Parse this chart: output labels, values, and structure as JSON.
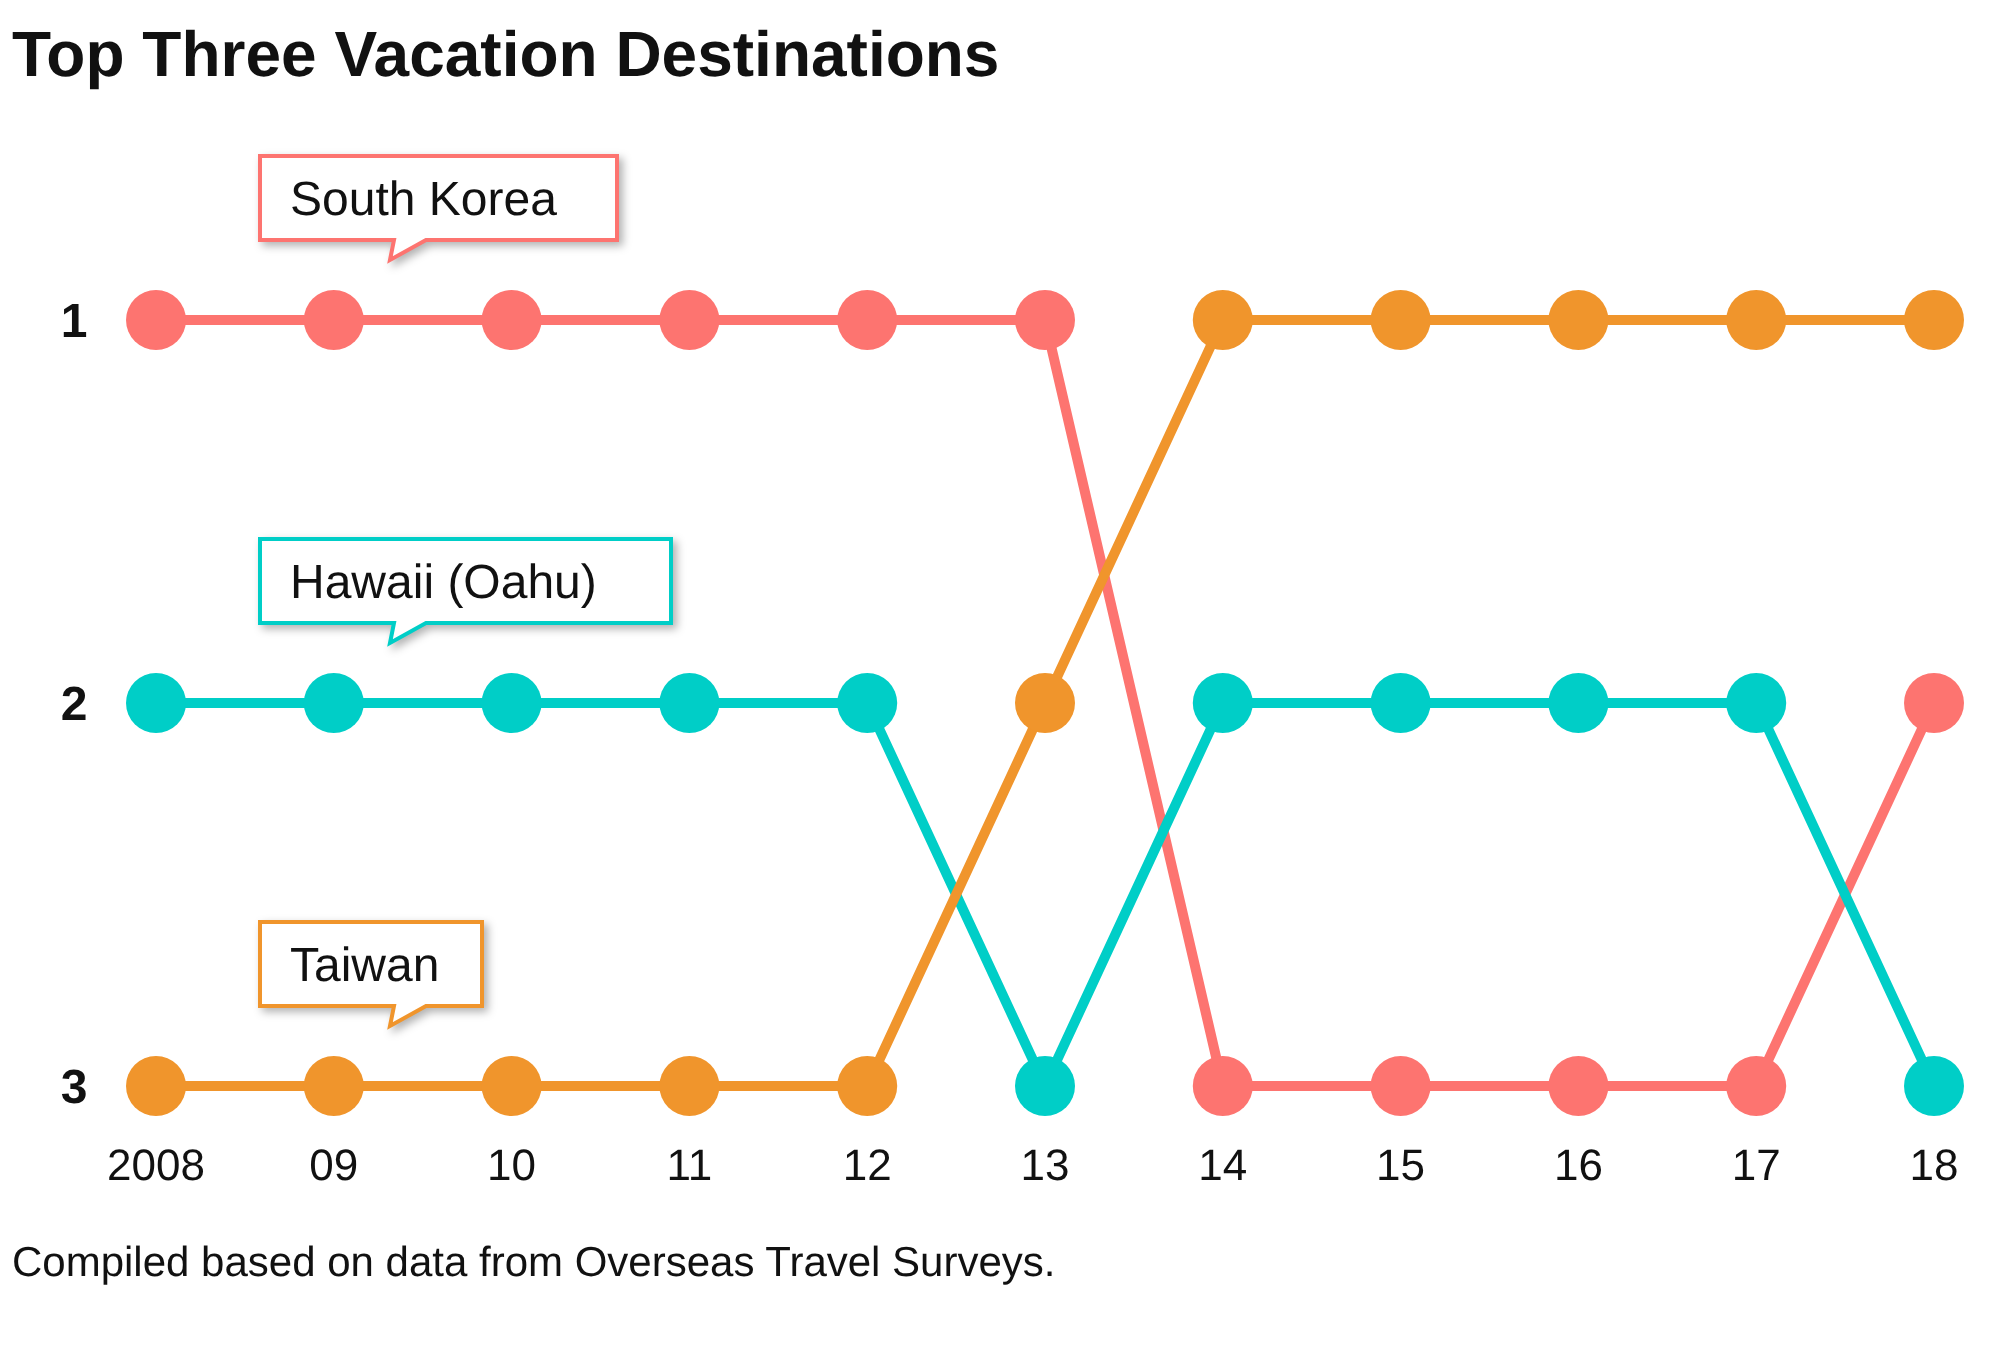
{
  "chart_data": {
    "type": "line",
    "title": "Top Three Vacation Destinations",
    "categories": [
      "2008",
      "09",
      "10",
      "11",
      "12",
      "13",
      "14",
      "15",
      "16",
      "17",
      "18"
    ],
    "series": [
      {
        "name": "South Korea",
        "color": "#fd7470",
        "values": [
          1,
          1,
          1,
          1,
          1,
          1,
          3,
          3,
          3,
          3,
          2
        ]
      },
      {
        "name": "Hawaii (Oahu)",
        "color": "#00cec7",
        "values": [
          2,
          2,
          2,
          2,
          2,
          3,
          2,
          2,
          2,
          2,
          3
        ]
      },
      {
        "name": "Taiwan",
        "color": "#f0952c",
        "values": [
          3,
          3,
          3,
          3,
          3,
          2,
          1,
          1,
          1,
          1,
          1
        ]
      }
    ],
    "ylim": [
      3,
      1
    ],
    "yticks": [
      1,
      2,
      3
    ],
    "marker": "circle",
    "line_style": "solid",
    "grid": false,
    "annotations": [
      "Compiled based on data from Overseas Travel Surveys."
    ]
  }
}
